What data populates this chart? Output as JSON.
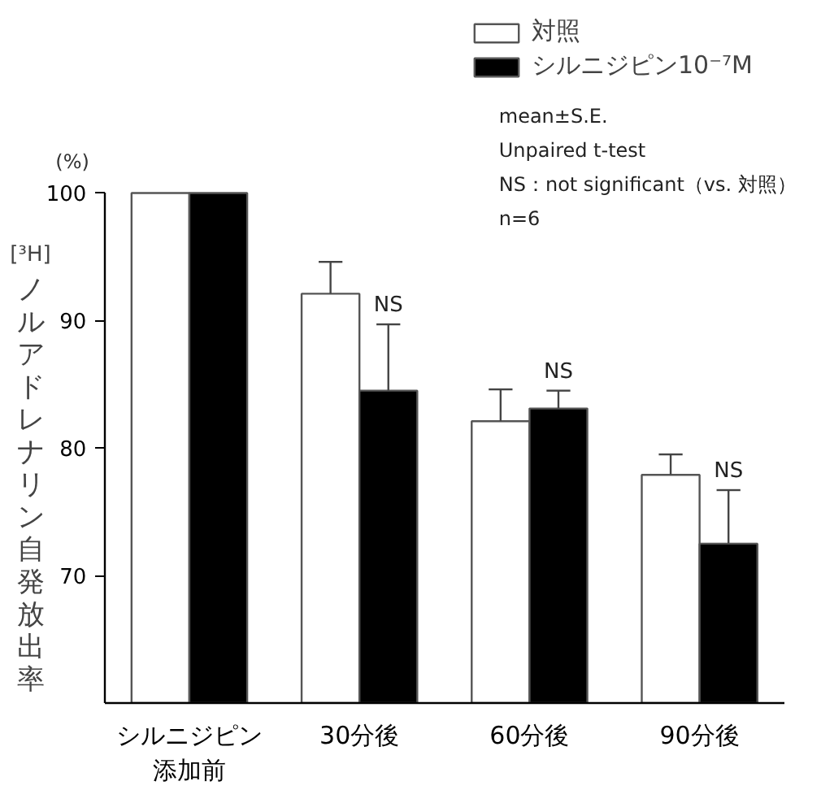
{
  "chart_data": {
    "type": "bar",
    "categories": [
      "シルニジピン添加前",
      "30分後",
      "60分後",
      "90分後"
    ],
    "ylabel": "[³H]\nノルアドレナリン自発放出率",
    "series": [
      {
        "name": "対照",
        "color": "#ffffff",
        "values": [
          100,
          92.1,
          82.1,
          77.9
        ],
        "errors": [
          null,
          [
            92.1,
            94.6
          ],
          [
            82.1,
            84.6
          ],
          [
            77.9,
            79.5
          ]
        ]
      },
      {
        "name": "シルニジピン10⁻⁷M",
        "color": "#000000",
        "values": [
          100,
          84.5,
          83.1,
          72.5
        ],
        "errors": [
          null,
          [
            84.5,
            89.7
          ],
          [
            83.1,
            84.5
          ],
          [
            72.5,
            76.7
          ]
        ]
      }
    ],
    "ylim": [
      60,
      100
    ],
    "yticks": [
      70,
      80,
      90,
      100
    ],
    "grid": false,
    "legend": "top right",
    "annotations": [
      "(%)",
      "mean±S.E.",
      "Unpaired t-test",
      "NS：not significant（vs. 対照）",
      "n=6",
      {
        "text": "NS",
        "x": "30分後",
        "y": 89.7
      },
      {
        "text": "NS",
        "x": "60分後",
        "y": 83.1
      },
      {
        "text": "NS",
        "x": "90分後",
        "y": 76.7
      }
    ]
  }
}
